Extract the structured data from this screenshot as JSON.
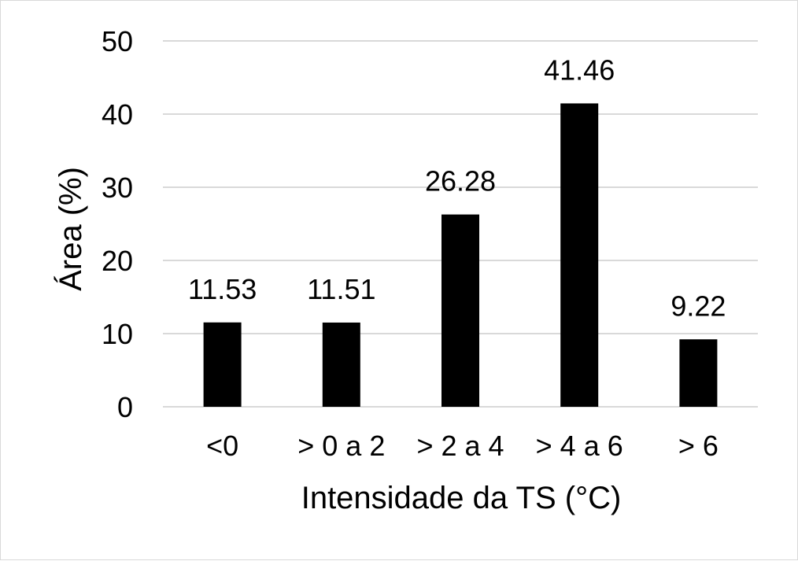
{
  "chart_data": {
    "type": "bar",
    "categories": [
      "<0",
      "> 0 a 2",
      "> 2 a 4",
      "> 4 a 6",
      "> 6"
    ],
    "values": [
      11.53,
      11.51,
      26.28,
      41.46,
      9.22
    ],
    "data_labels": [
      "11.53",
      "11.51",
      "26.28",
      "41.46",
      "9.22"
    ],
    "title": "",
    "xlabel": "Intensidade da TS (°C)",
    "ylabel": "Área (%)",
    "ylim": [
      0,
      50
    ],
    "yticks": [
      0,
      10,
      20,
      30,
      40,
      50
    ],
    "ytick_labels": [
      "0",
      "10",
      "20",
      "30",
      "40",
      "50"
    ],
    "grid": true,
    "legend": "none",
    "colors": {
      "bar": "#000000",
      "grid": "#d9d9d9",
      "text": "#000000"
    }
  }
}
